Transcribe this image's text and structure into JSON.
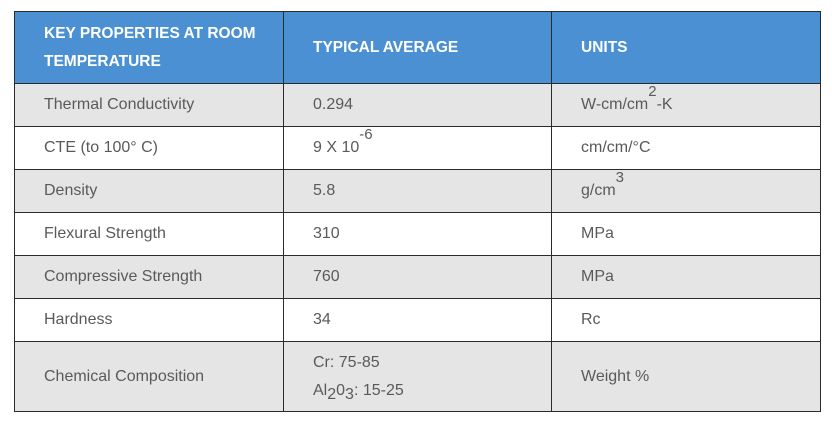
{
  "table": {
    "headers": [
      "KEY PROPERTIES AT ROOM TEMPERATURE",
      "TYPICAL AVERAGE",
      "UNITS"
    ],
    "rows": [
      {
        "property": "Thermal Conductivity",
        "value": "0.294",
        "unit_base": "W-cm/cm",
        "unit_sup": "2",
        "unit_tail": "-K"
      },
      {
        "property": "CTE (to 100° C)",
        "value_base": "9 X 10",
        "value_sup": "-6",
        "unit": "cm/cm/°C"
      },
      {
        "property": "Density",
        "value": "5.8",
        "unit_base": "g/cm",
        "unit_sup": "3"
      },
      {
        "property": "Flexural Strength",
        "value": "310",
        "unit": "MPa"
      },
      {
        "property": "Compressive Strength",
        "value": "760",
        "unit": "MPa"
      },
      {
        "property": "Hardness",
        "value": "34",
        "unit": "Rc"
      },
      {
        "property": "Chemical Composition",
        "value_line1": "Cr: 75-85",
        "value_line2_parts": [
          "Al",
          "2",
          "0",
          "3",
          ": 15-25"
        ],
        "unit": "Weight %"
      }
    ]
  }
}
